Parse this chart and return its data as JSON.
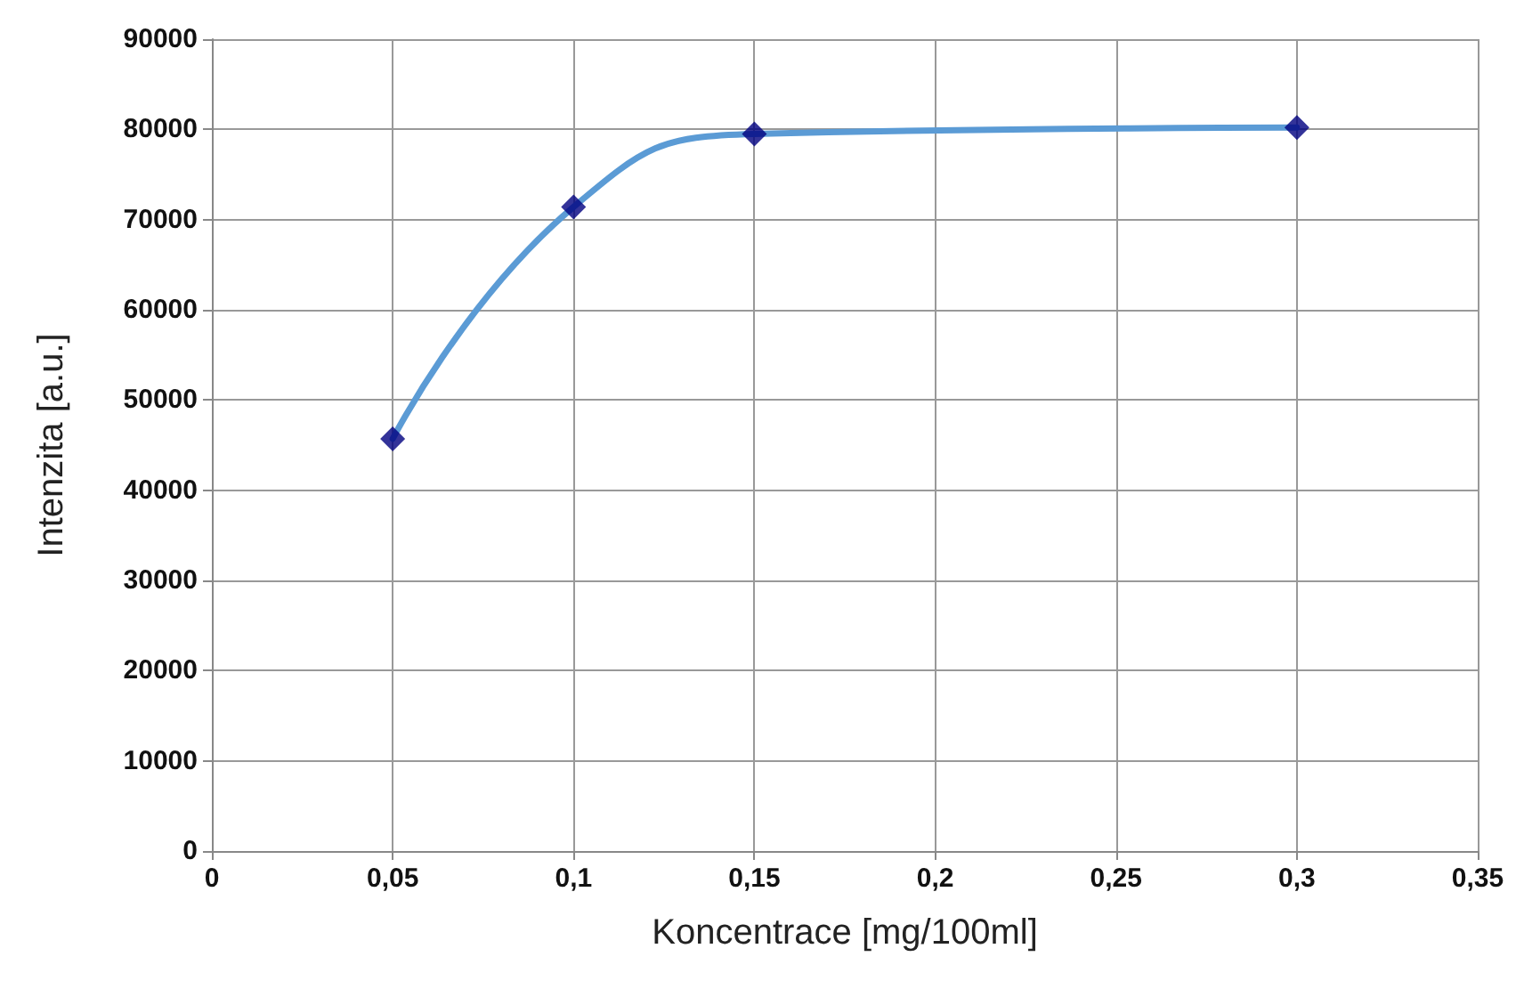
{
  "chart_data": {
    "type": "line",
    "xlabel": "Koncentrace [mg/100ml]",
    "ylabel": "Intenzita [a.u.]",
    "x": [
      0.05,
      0.1,
      0.15,
      0.3
    ],
    "series": [
      {
        "color": "#5b9bd5",
        "marker": "none",
        "values": [
          45700,
          71400,
          79500,
          80200
        ]
      },
      {
        "type": "scatter",
        "color": "#000080",
        "marker": "diamond",
        "values": [
          45700,
          71400,
          79500,
          80200
        ]
      }
    ],
    "xlim": [
      0,
      0.35
    ],
    "xticks": [
      {
        "value": 0,
        "label": "0"
      },
      {
        "value": 0.05,
        "label": "0,05"
      },
      {
        "value": 0.1,
        "label": "0,1"
      },
      {
        "value": 0.15,
        "label": "0,15"
      },
      {
        "value": 0.2,
        "label": "0,2"
      },
      {
        "value": 0.25,
        "label": "0,25"
      },
      {
        "value": 0.3,
        "label": "0,3"
      },
      {
        "value": 0.35,
        "label": "0,35"
      }
    ],
    "ylim": [
      0,
      90000
    ],
    "yticks": [
      0,
      10000,
      20000,
      30000,
      40000,
      50000,
      60000,
      70000,
      80000,
      90000
    ],
    "grid": true
  }
}
